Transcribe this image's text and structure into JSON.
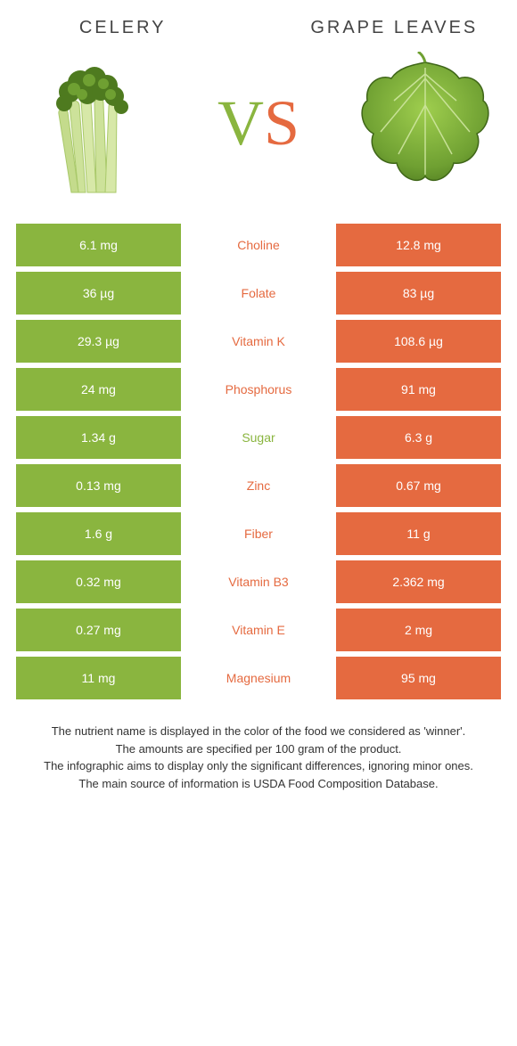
{
  "colors": {
    "green": "#8ab53f",
    "orange": "#e56a40",
    "text": "#333333",
    "background": "#ffffff"
  },
  "left": {
    "title": "CELERY"
  },
  "right": {
    "title": "GRAPE LEAVES"
  },
  "vs": {
    "v": "V",
    "s": "S"
  },
  "rows": [
    {
      "left": "6.1 mg",
      "label": "Choline",
      "right": "12.8 mg",
      "winner": "right"
    },
    {
      "left": "36 µg",
      "label": "Folate",
      "right": "83 µg",
      "winner": "right"
    },
    {
      "left": "29.3 µg",
      "label": "Vitamin K",
      "right": "108.6 µg",
      "winner": "right"
    },
    {
      "left": "24 mg",
      "label": "Phosphorus",
      "right": "91 mg",
      "winner": "right"
    },
    {
      "left": "1.34 g",
      "label": "Sugar",
      "right": "6.3 g",
      "winner": "left"
    },
    {
      "left": "0.13 mg",
      "label": "Zinc",
      "right": "0.67 mg",
      "winner": "right"
    },
    {
      "left": "1.6 g",
      "label": "Fiber",
      "right": "11 g",
      "winner": "right"
    },
    {
      "left": "0.32 mg",
      "label": "Vitamin B3",
      "right": "2.362 mg",
      "winner": "right"
    },
    {
      "left": "0.27 mg",
      "label": "Vitamin E",
      "right": "2 mg",
      "winner": "right"
    },
    {
      "left": "11 mg",
      "label": "Magnesium",
      "right": "95 mg",
      "winner": "right"
    }
  ],
  "footnotes": [
    "The nutrient name is displayed in the color of the food we considered as 'winner'.",
    "The amounts are specified per 100 gram of the product.",
    "The infographic aims to display only the significant differences, ignoring minor ones.",
    "The main source of information is USDA Food Composition Database."
  ]
}
